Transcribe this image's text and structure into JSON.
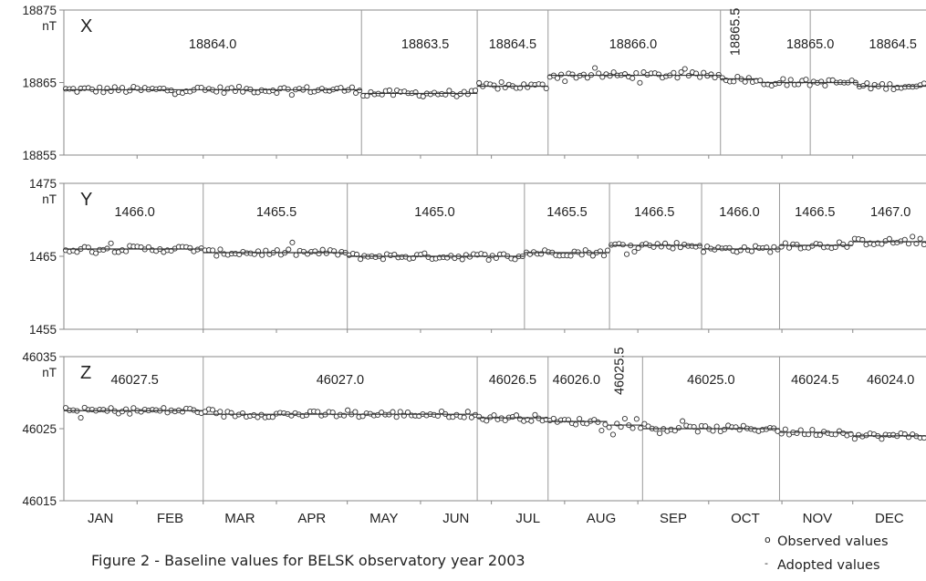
{
  "caption": "Figure 2 - Baseline values for BELSK observatory year 2003",
  "legend": {
    "observed": "Observed values",
    "observed_symbol": "o",
    "adopted": "Adopted values",
    "adopted_symbol": "-"
  },
  "months": [
    "JAN",
    "FEB",
    "MAR",
    "APR",
    "MAY",
    "JUN",
    "JUL",
    "AUG",
    "SEP",
    "OCT",
    "NOV",
    "DEC"
  ],
  "chart_data": [
    {
      "type": "scatter",
      "component": "X",
      "unit": "nT",
      "ylim": [
        18855,
        18875
      ],
      "ytick_labels": [
        "18875",
        "18865",
        "18855"
      ],
      "ytick_values": [
        18875,
        18865,
        18855
      ],
      "baseline_breaks_day": [
        126,
        175,
        205,
        278,
        316
      ],
      "segments": [
        {
          "label": "18864.0",
          "start_day": 0,
          "end_day": 126,
          "adopted": 18864.0,
          "label_day": 63,
          "label_value": 18869.7
        },
        {
          "label": "18863.5",
          "start_day": 126,
          "end_day": 175,
          "adopted": 18863.5,
          "label_day": 153,
          "label_value": 18869.7
        },
        {
          "label": "18864.5",
          "start_day": 175,
          "end_day": 205,
          "adopted": 18864.5,
          "label_day": 190,
          "label_value": 18869.7
        },
        {
          "label": "18866.0",
          "start_day": 205,
          "end_day": 278,
          "adopted": 18866.0,
          "label_day": 241,
          "label_value": 18869.7
        },
        {
          "label": "18865.5",
          "start_day": 278,
          "end_day": 294,
          "adopted": 18865.5,
          "label_day": 286,
          "label_value": 18872,
          "vertical": true
        },
        {
          "label": "18865.0",
          "start_day": 294,
          "end_day": 336,
          "adopted": 18865.0,
          "label_day": 316,
          "label_value": 18869.7
        },
        {
          "label": "18864.5",
          "start_day": 336,
          "end_day": 365,
          "adopted": 18864.5,
          "label_day": 351,
          "label_value": 18869.7
        }
      ]
    },
    {
      "type": "scatter",
      "component": "Y",
      "unit": "nT",
      "ylim": [
        1455,
        1475
      ],
      "ytick_labels": [
        "1475",
        "1465",
        "1455"
      ],
      "ytick_values": [
        1475,
        1465,
        1455
      ],
      "baseline_breaks_day": [
        59,
        120,
        195,
        231,
        270,
        303
      ],
      "segments": [
        {
          "label": "1466.0",
          "start_day": 0,
          "end_day": 59,
          "adopted": 1466.0,
          "label_day": 30,
          "label_value": 1470.5
        },
        {
          "label": "1465.5",
          "start_day": 59,
          "end_day": 120,
          "adopted": 1465.5,
          "label_day": 90,
          "label_value": 1470.5
        },
        {
          "label": "1465.0",
          "start_day": 120,
          "end_day": 195,
          "adopted": 1465.0,
          "label_day": 157,
          "label_value": 1470.5
        },
        {
          "label": "1465.5",
          "start_day": 195,
          "end_day": 231,
          "adopted": 1465.5,
          "label_day": 213,
          "label_value": 1470.5
        },
        {
          "label": "1466.5",
          "start_day": 231,
          "end_day": 270,
          "adopted": 1466.5,
          "label_day": 250,
          "label_value": 1470.5
        },
        {
          "label": "1466.0",
          "start_day": 270,
          "end_day": 303,
          "adopted": 1466.0,
          "label_day": 286,
          "label_value": 1470.5
        },
        {
          "label": "1466.5",
          "start_day": 303,
          "end_day": 334,
          "adopted": 1466.5,
          "label_day": 318,
          "label_value": 1470.5
        },
        {
          "label": "1467.0",
          "start_day": 334,
          "end_day": 365,
          "adopted": 1467.0,
          "label_day": 350,
          "label_value": 1470.5
        }
      ]
    },
    {
      "type": "scatter",
      "component": "Z",
      "unit": "nT",
      "ylim": [
        46015,
        46035
      ],
      "ytick_labels": [
        "46035",
        "46025",
        "46015"
      ],
      "ytick_values": [
        46035,
        46025,
        46015
      ],
      "baseline_breaks_day": [
        59,
        175,
        205,
        245,
        303
      ],
      "segments": [
        {
          "label": "46027.5",
          "start_day": 0,
          "end_day": 59,
          "adopted": 46027.5,
          "label_day": 30,
          "label_value": 46031.2
        },
        {
          "label": "46027.0",
          "start_day": 59,
          "end_day": 175,
          "adopted": 46027.0,
          "label_day": 117,
          "label_value": 46031.2
        },
        {
          "label": "46026.5",
          "start_day": 175,
          "end_day": 205,
          "adopted": 46026.5,
          "label_day": 190,
          "label_value": 46031.2
        },
        {
          "label": "46026.0",
          "start_day": 205,
          "end_day": 230,
          "adopted": 46026.0,
          "label_day": 217,
          "label_value": 46031.2
        },
        {
          "label": "46025.5",
          "start_day": 230,
          "end_day": 245,
          "adopted": 46025.5,
          "label_day": 237,
          "label_value": 46033,
          "vertical": true
        },
        {
          "label": "46025.0",
          "start_day": 245,
          "end_day": 303,
          "adopted": 46025.0,
          "label_day": 274,
          "label_value": 46031.2
        },
        {
          "label": "46024.5",
          "start_day": 303,
          "end_day": 334,
          "adopted": 46024.5,
          "label_day": 318,
          "label_value": 46031.2
        },
        {
          "label": "46024.0",
          "start_day": 334,
          "end_day": 365,
          "adopted": 46024.0,
          "label_day": 350,
          "label_value": 46031.2
        }
      ]
    }
  ]
}
